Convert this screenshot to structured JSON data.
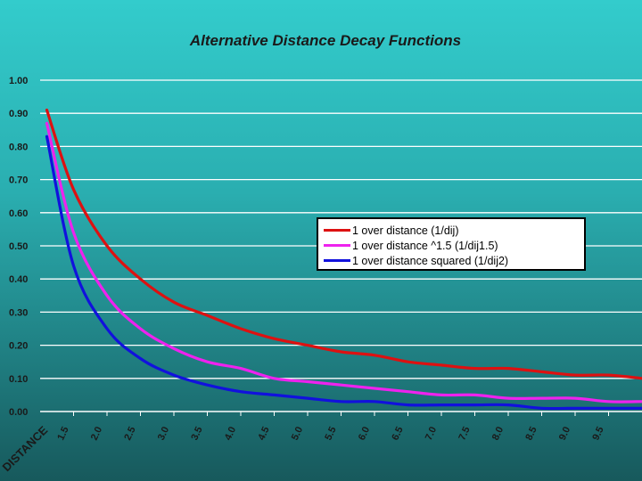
{
  "chart_data": {
    "type": "line",
    "title": "Alternative Distance Decay Functions",
    "xlabel": "DISTANCE",
    "ylabel": "",
    "ylim": [
      0,
      1
    ],
    "yticks": [
      "0.00",
      "0.10",
      "0.20",
      "0.30",
      "0.40",
      "0.50",
      "0.60",
      "0.70",
      "0.80",
      "0.90",
      "1.00"
    ],
    "x": [
      1.1,
      1.5,
      2.0,
      2.5,
      3.0,
      3.5,
      4.0,
      4.5,
      5.0,
      5.5,
      6.0,
      6.5,
      7.0,
      7.5,
      8.0,
      8.5,
      9.0,
      9.5,
      10.0
    ],
    "xticks": [
      "1.5",
      "2.0",
      "2.5",
      "3.0",
      "3.5",
      "4.0",
      "4.5",
      "5.0",
      "5.5",
      "6.0",
      "6.5",
      "7.0",
      "7.5",
      "8.0",
      "8.5",
      "9.0",
      "9.5"
    ],
    "grid": true,
    "legend_position": "center-right",
    "series": [
      {
        "name": "1 over distance (1/dij)",
        "color": "#dd1111",
        "values": [
          0.91,
          0.67,
          0.5,
          0.4,
          0.33,
          0.29,
          0.25,
          0.22,
          0.2,
          0.18,
          0.17,
          0.15,
          0.14,
          0.13,
          0.13,
          0.12,
          0.11,
          0.11,
          0.1
        ]
      },
      {
        "name": "1 over distance ^1.5 (1/dij1.5)",
        "color": "#ee22ee",
        "values": [
          0.87,
          0.54,
          0.35,
          0.25,
          0.19,
          0.15,
          0.13,
          0.1,
          0.09,
          0.08,
          0.07,
          0.06,
          0.05,
          0.05,
          0.04,
          0.04,
          0.04,
          0.03,
          0.03
        ]
      },
      {
        "name": "1 over distance squared (1/dij2)",
        "color": "#1111dd",
        "values": [
          0.83,
          0.44,
          0.25,
          0.16,
          0.11,
          0.08,
          0.06,
          0.05,
          0.04,
          0.03,
          0.03,
          0.02,
          0.02,
          0.02,
          0.02,
          0.01,
          0.01,
          0.01,
          0.01
        ]
      }
    ]
  }
}
